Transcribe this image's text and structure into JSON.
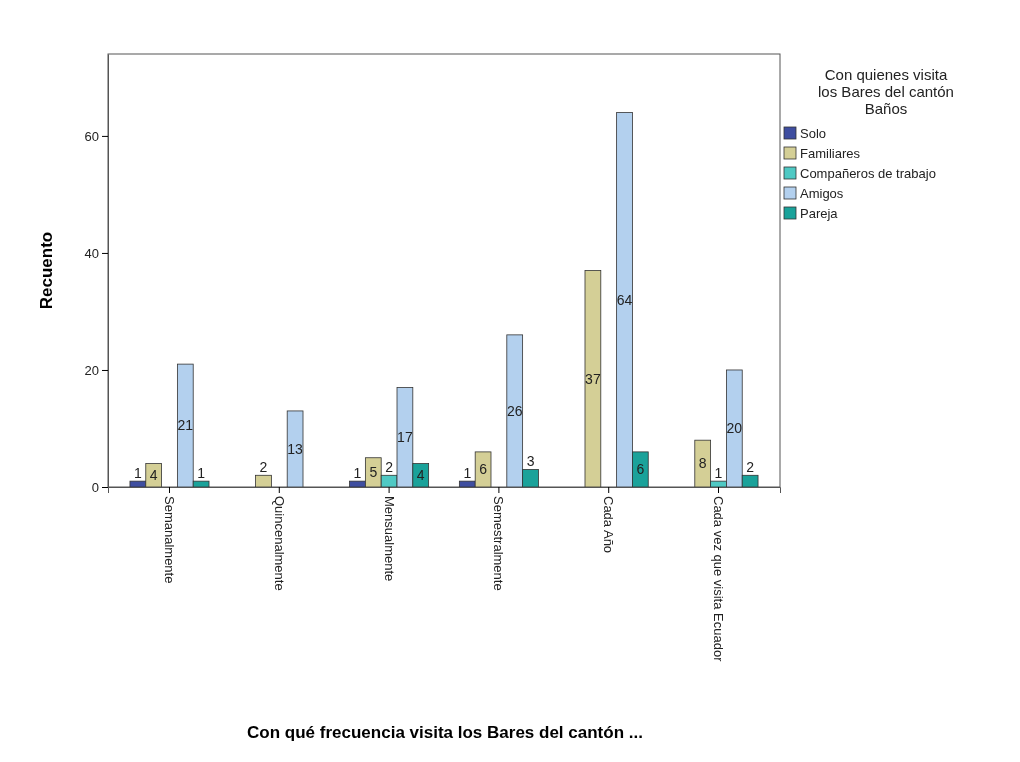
{
  "chart_data": {
    "type": "bar",
    "categories": [
      "Semanalmente",
      "Quincenalmente",
      "Mensualmente",
      "Semestralmente",
      "Cada Año",
      "Cada vez que visita Ecuador"
    ],
    "xlabel": "Con qué frecuencia visita los Bares del cantón ...",
    "ylabel": "Recuento",
    "legend_title": "Con quienes visita\nlos Bares del cantón\nBaños",
    "series": [
      {
        "name": "Solo",
        "color": "#3f4ea0",
        "values": [
          1,
          null,
          1,
          1,
          null,
          null
        ]
      },
      {
        "name": "Familiares",
        "color": "#d4cf96",
        "values": [
          4,
          2,
          5,
          6,
          37,
          8
        ]
      },
      {
        "name": "Compañeros de trabajo",
        "color": "#4fc9c4",
        "values": [
          null,
          null,
          2,
          null,
          null,
          1
        ]
      },
      {
        "name": "Amigos",
        "color": "#b3d0ee",
        "values": [
          21,
          13,
          17,
          26,
          64,
          20
        ]
      },
      {
        "name": "Pareja",
        "color": "#1aa29a",
        "values": [
          1,
          null,
          4,
          3,
          6,
          2
        ]
      }
    ],
    "ylim": [
      0,
      74
    ],
    "yticks": [
      0,
      20,
      40,
      60
    ],
    "grid": false,
    "legend": "right",
    "data_labels": true
  }
}
